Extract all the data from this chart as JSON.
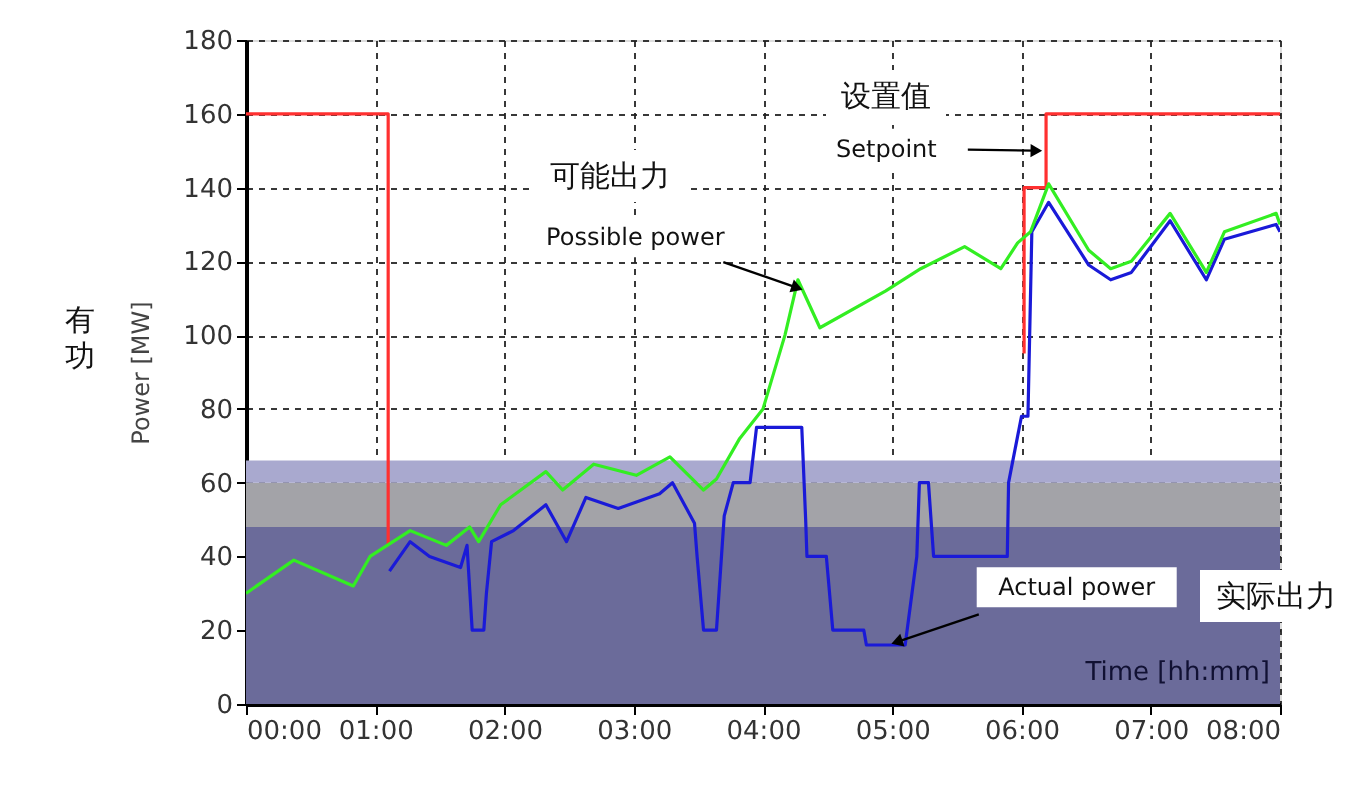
{
  "chart_data": {
    "type": "line",
    "xlabel": "Time [hh:mm]",
    "ylabel": "Power [MW]",
    "xlim": [
      0,
      8
    ],
    "ylim": [
      0,
      180
    ],
    "xticks": [
      {
        "value": 0,
        "label": "00:00"
      },
      {
        "value": 1,
        "label": "01:00"
      },
      {
        "value": 2,
        "label": "02:00"
      },
      {
        "value": 3,
        "label": "03:00"
      },
      {
        "value": 4,
        "label": "04:00"
      },
      {
        "value": 5,
        "label": "05:00"
      },
      {
        "value": 6,
        "label": "06:00"
      },
      {
        "value": 7,
        "label": "07:00"
      },
      {
        "value": 8,
        "label": "08:00"
      }
    ],
    "yticks": [
      0,
      20,
      40,
      60,
      80,
      100,
      120,
      140,
      160,
      180
    ],
    "grid": true,
    "line_style": "solid",
    "marker": "none",
    "bands": [
      {
        "axis": "y",
        "from": 0,
        "to": 48,
        "color": "#6b6b9a"
      },
      {
        "axis": "y",
        "from": 48,
        "to": 60,
        "color": "#a3a3a8"
      },
      {
        "axis": "y",
        "from": 60,
        "to": 66,
        "color": "#a9a9cf"
      }
    ],
    "series": [
      {
        "color": "#ff3030",
        "x": [
          0,
          1.1,
          1.1,
          1.5,
          6.02,
          6.02,
          6.19,
          6.19,
          8
        ],
        "values": [
          160,
          160,
          43,
          null,
          95,
          140,
          140,
          160,
          160
        ]
      },
      {
        "color": "#1a1ad8",
        "x": [
          1.11,
          1.27,
          1.42,
          1.66,
          1.71,
          1.75,
          1.84,
          1.86,
          1.9,
          2.07,
          2.32,
          2.48,
          2.63,
          2.88,
          3.2,
          3.3,
          3.47,
          3.49,
          3.54,
          3.64,
          3.7,
          3.77,
          3.9,
          3.95,
          4.3,
          4.33,
          4.34,
          4.49,
          4.54,
          4.78,
          4.8,
          5.1,
          5.19,
          5.21,
          5.28,
          5.32,
          5.89,
          5.9,
          6.0,
          6.05,
          6.08,
          6.21,
          6.52,
          6.69,
          6.85,
          7.15,
          7.43,
          7.57,
          7.97,
          8.0
        ],
        "values": [
          36,
          44,
          40,
          37,
          43,
          20,
          20,
          30,
          44,
          47,
          54,
          44,
          56,
          53,
          57,
          60,
          49,
          40,
          20,
          20,
          51,
          60,
          60,
          75,
          75,
          50,
          40,
          40,
          20,
          20,
          16,
          16,
          40,
          60,
          60,
          40,
          40,
          60,
          78,
          78,
          128,
          136,
          119,
          115,
          117,
          131,
          115,
          126,
          130,
          128
        ]
      },
      {
        "color": "#33ee22",
        "x": [
          0,
          0.37,
          0.83,
          0.96,
          1.27,
          1.55,
          1.73,
          1.8,
          1.97,
          2.32,
          2.45,
          2.69,
          3.02,
          3.28,
          3.54,
          3.64,
          3.82,
          4.0,
          4.17,
          4.27,
          4.44,
          4.95,
          5.22,
          5.56,
          5.84,
          5.97,
          6.07,
          6.21,
          6.52,
          6.69,
          6.85,
          7.15,
          7.43,
          7.57,
          7.97,
          8.0
        ],
        "values": [
          30,
          39,
          32,
          40,
          47,
          43,
          48,
          44,
          54,
          63,
          58,
          65,
          62,
          67,
          58,
          61,
          72,
          80,
          100,
          115,
          102,
          112,
          118,
          124,
          118,
          125,
          128,
          141,
          123,
          118,
          120,
          133,
          117,
          128,
          133,
          130
        ]
      }
    ],
    "annotations": [
      "可能出力",
      {
        "text": "Possible power",
        "x": 4.25,
        "y": 113
      },
      "设置值",
      {
        "text": "Setpoint",
        "x": 6.1,
        "y": 150
      },
      {
        "text": "Actual power",
        "x": 5.05,
        "y": 17
      },
      "实际出力",
      "有功"
    ]
  }
}
